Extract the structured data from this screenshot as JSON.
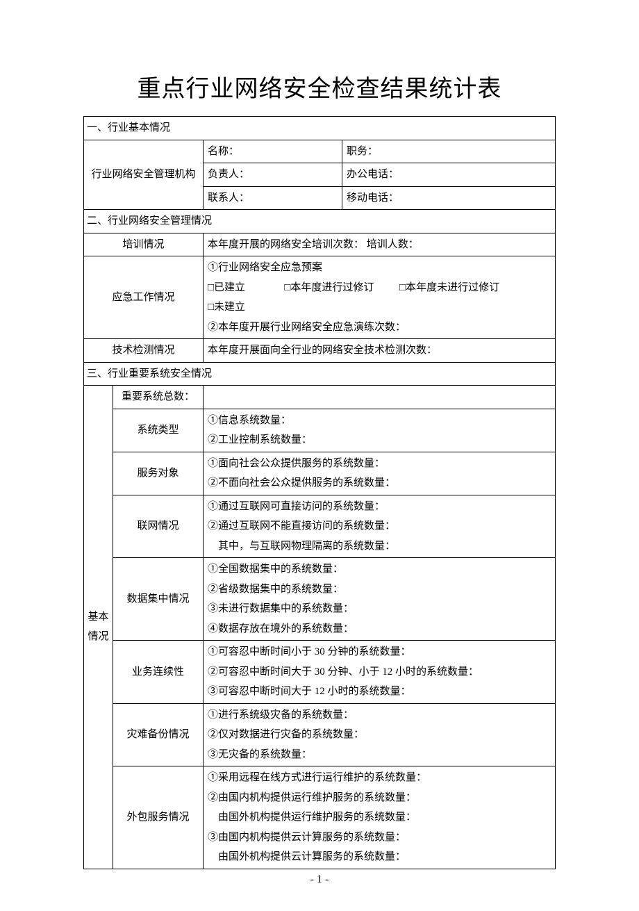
{
  "title": "重点行业网络安全检查结果统计表",
  "pageNumber": "- 1 -",
  "colors": {
    "text": "#000000",
    "border": "#000000",
    "bg": "#ffffff"
  },
  "typography": {
    "title_fontsize": 34,
    "body_fontsize": 15,
    "font_family": "SimSun"
  },
  "section1": {
    "header": "一、行业基本情况",
    "orgLabel": "行业网络安全管理机构",
    "r1c1": "名称：",
    "r1c2": "职务：",
    "r2c1": "负责人：",
    "r2c2": "办公电话：",
    "r3c1": "联系人：",
    "r3c2": "移动电话："
  },
  "section2": {
    "header": "二、行业网络安全管理情况",
    "trainingLabel": "培训情况",
    "trainingText": "本年度开展的网络安全培训次数：        培训人数：",
    "emergencyLabel": "应急工作情况",
    "emergencyLine1": "①行业网络安全应急预案",
    "emergencyLine2a": "□已建立",
    "emergencyLine2b": "□本年度进行过修订",
    "emergencyLine2c": "□本年度未进行过修订",
    "emergencyLine3": "□未建立",
    "emergencyLine4": "②本年度开展行业网络安全应急演练次数：",
    "techLabel": "技术检测情况",
    "techText": "本年度开展面向全行业的网络安全技术检测次数："
  },
  "section3": {
    "header": "三、行业重要系统安全情况",
    "sideLabel": "基本情况",
    "rows": {
      "total": {
        "label": "重要系统总数：",
        "lines": [
          ""
        ]
      },
      "sysType": {
        "label": "系统类型",
        "lines": [
          "①信息系统数量：",
          "②工业控制系统数量："
        ]
      },
      "serviceObj": {
        "label": "服务对象",
        "lines": [
          "①面向社会公众提供服务的系统数量：",
          "②不面向社会公众提供服务的系统数量："
        ]
      },
      "network": {
        "label": "联网情况",
        "lines": [
          "①通过互联网可直接访问的系统数量：",
          "②通过互联网不能直接访问的系统数量：",
          "　其中，与互联网物理隔离的系统数量："
        ]
      },
      "dataCentral": {
        "label": "数据集中情况",
        "lines": [
          "①全国数据集中的系统数量：",
          "②省级数据集中的系统数量：",
          "③未进行数据集中的系统数量：",
          "④数据存放在境外的系统数量："
        ]
      },
      "continuity": {
        "label": "业务连续性",
        "lines": [
          "①可容忍中断时间小于 30 分钟的系统数量：",
          "②可容忍中断时间大于 30 分钟、小于 12 小时的系统数量：",
          "③可容忍中断时间大于 12 小时的系统数量："
        ]
      },
      "backup": {
        "label": "灾难备份情况",
        "lines": [
          "①进行系统级灾备的系统数量：",
          "②仅对数据进行灾备的系统数量：",
          "③无灾备的系统数量："
        ]
      },
      "outsource": {
        "label": "外包服务情况",
        "lines": [
          "①采用远程在线方式进行运行维护的系统数量：",
          "②由国内机构提供运行维护服务的系统数量：",
          "　由国外机构提供运行维护服务的系统数量：",
          "③由国内机构提供云计算服务的系统数量：",
          "　由国外机构提供云计算服务的系统数量："
        ]
      }
    }
  }
}
